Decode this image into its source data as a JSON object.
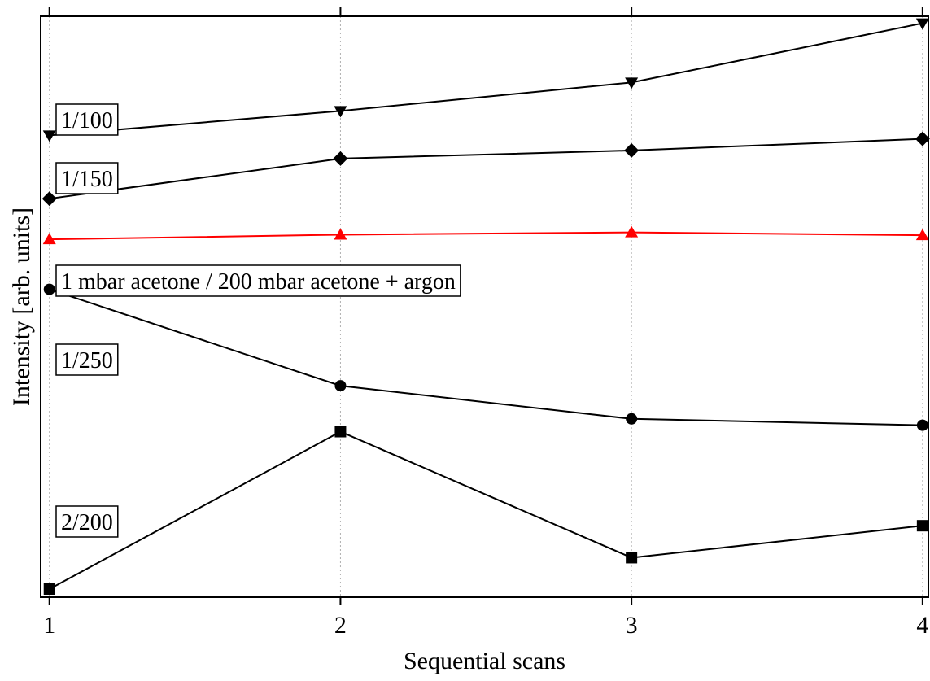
{
  "chart_data": {
    "type": "line",
    "xlabel": "Sequential scans",
    "ylabel": "Intensity [arb. units]",
    "x": [
      1,
      2,
      3,
      4
    ],
    "xticks": [
      "1",
      "2",
      "3",
      "4"
    ],
    "xlim": [
      0.97,
      4.02
    ],
    "ylim": [
      0,
      100
    ],
    "grid": "vertical dotted",
    "yticks_labeled": false,
    "series": [
      {
        "name": "1/100",
        "marker": "triangle-down",
        "color": "#000000",
        "values": [
          79.5,
          83.7,
          88.6,
          98.8
        ]
      },
      {
        "name": "1/150",
        "marker": "diamond",
        "color": "#000000",
        "values": [
          68.6,
          75.5,
          76.9,
          78.9
        ]
      },
      {
        "name": "1 mbar acetone / 200 mbar acetone + argon",
        "marker": "triangle-up",
        "color": "#ff0000",
        "values": [
          61.6,
          62.4,
          62.8,
          62.3
        ]
      },
      {
        "name": "1/250",
        "marker": "circle",
        "color": "#000000",
        "values": [
          53.0,
          36.4,
          30.7,
          29.6
        ]
      },
      {
        "name": "2/200",
        "marker": "square",
        "color": "#000000",
        "values": [
          1.4,
          28.5,
          6.8,
          12.3
        ]
      }
    ]
  }
}
